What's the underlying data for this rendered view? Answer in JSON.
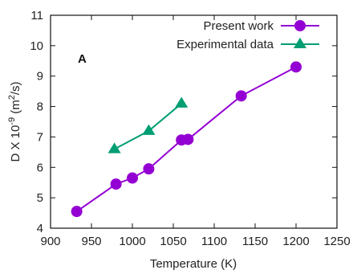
{
  "chart_data": {
    "type": "line",
    "panel_label": "A",
    "xlabel": "Temperature (K)",
    "ylabel": "D X 10",
    "ylabel_exponent": "-9",
    "ylabel_units_open": " (m",
    "ylabel_units_sup": "2",
    "ylabel_units_close": "/s)",
    "xlim": [
      900,
      1250
    ],
    "ylim": [
      4,
      11
    ],
    "xticks": [
      900,
      950,
      1000,
      1050,
      1100,
      1150,
      1200,
      1250
    ],
    "yticks": [
      4,
      5,
      6,
      7,
      8,
      9,
      10,
      11
    ],
    "grid": false,
    "legend_position": "top-right",
    "series": [
      {
        "name": "Present work",
        "color": "#9400d3",
        "marker": "circle",
        "x": [
          932,
          980,
          1000,
          1020,
          1060,
          1068,
          1133,
          1200
        ],
        "y": [
          4.55,
          5.45,
          5.65,
          5.95,
          6.9,
          6.92,
          8.35,
          9.3
        ]
      },
      {
        "name": "Experimental data",
        "color": "#009e73",
        "marker": "triangle",
        "x": [
          978,
          1020,
          1060
        ],
        "y": [
          6.6,
          7.2,
          8.1
        ]
      }
    ]
  }
}
